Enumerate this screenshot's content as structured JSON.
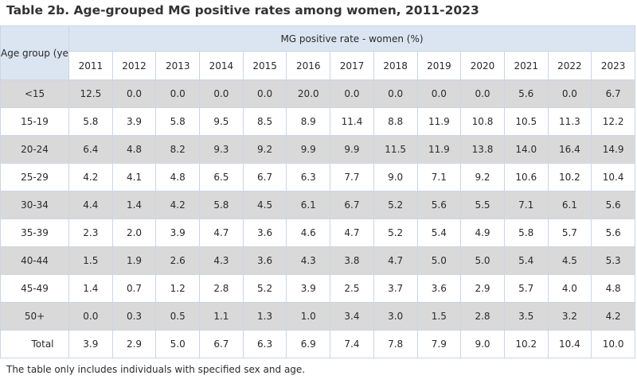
{
  "title": "Table 2b. Age-grouped MG positive rates among women, 2011-2023",
  "table": {
    "age_header": "Age group (years)",
    "rate_header": "MG positive rate - women (%)",
    "years": [
      "2011",
      "2012",
      "2013",
      "2014",
      "2015",
      "2016",
      "2017",
      "2018",
      "2019",
      "2020",
      "2021",
      "2022",
      "2023"
    ],
    "rows": [
      {
        "age": "<15",
        "values": [
          "12.5",
          "0.0",
          "0.0",
          "0.0",
          "0.0",
          "20.0",
          "0.0",
          "0.0",
          "0.0",
          "0.0",
          "5.6",
          "0.0",
          "6.7"
        ]
      },
      {
        "age": "15-19",
        "values": [
          "5.8",
          "3.9",
          "5.8",
          "9.5",
          "8.5",
          "8.9",
          "11.4",
          "8.8",
          "11.9",
          "10.8",
          "10.5",
          "11.3",
          "12.2"
        ]
      },
      {
        "age": "20-24",
        "values": [
          "6.4",
          "4.8",
          "8.2",
          "9.3",
          "9.2",
          "9.9",
          "9.9",
          "11.5",
          "11.9",
          "13.8",
          "14.0",
          "16.4",
          "14.9"
        ]
      },
      {
        "age": "25-29",
        "values": [
          "4.2",
          "4.1",
          "4.8",
          "6.5",
          "6.7",
          "6.3",
          "7.7",
          "9.0",
          "7.1",
          "9.2",
          "10.6",
          "10.2",
          "10.4"
        ]
      },
      {
        "age": "30-34",
        "values": [
          "4.4",
          "1.4",
          "4.2",
          "5.8",
          "4.5",
          "6.1",
          "6.7",
          "5.2",
          "5.6",
          "5.5",
          "7.1",
          "6.1",
          "5.6"
        ]
      },
      {
        "age": "35-39",
        "values": [
          "2.3",
          "2.0",
          "3.9",
          "4.7",
          "3.6",
          "4.6",
          "4.7",
          "5.2",
          "5.4",
          "4.9",
          "5.8",
          "5.7",
          "5.6"
        ]
      },
      {
        "age": "40-44",
        "values": [
          "1.5",
          "1.9",
          "2.6",
          "4.3",
          "3.6",
          "4.3",
          "3.8",
          "4.7",
          "5.0",
          "5.0",
          "5.4",
          "4.5",
          "5.3"
        ]
      },
      {
        "age": "45-49",
        "values": [
          "1.4",
          "0.7",
          "1.2",
          "2.8",
          "5.2",
          "3.9",
          "2.5",
          "3.7",
          "3.6",
          "2.9",
          "5.7",
          "4.0",
          "4.8"
        ]
      },
      {
        "age": "50+",
        "values": [
          "0.0",
          "0.3",
          "0.5",
          "1.1",
          "1.3",
          "1.0",
          "3.4",
          "3.0",
          "1.5",
          "2.8",
          "3.5",
          "3.2",
          "4.2"
        ]
      },
      {
        "age": "Total",
        "values": [
          "3.9",
          "2.9",
          "5.0",
          "6.7",
          "6.3",
          "6.9",
          "7.4",
          "7.8",
          "7.9",
          "9.0",
          "10.2",
          "10.4",
          "10.0"
        ]
      }
    ]
  },
  "note": "The table only includes individuals with specified sex and age."
}
